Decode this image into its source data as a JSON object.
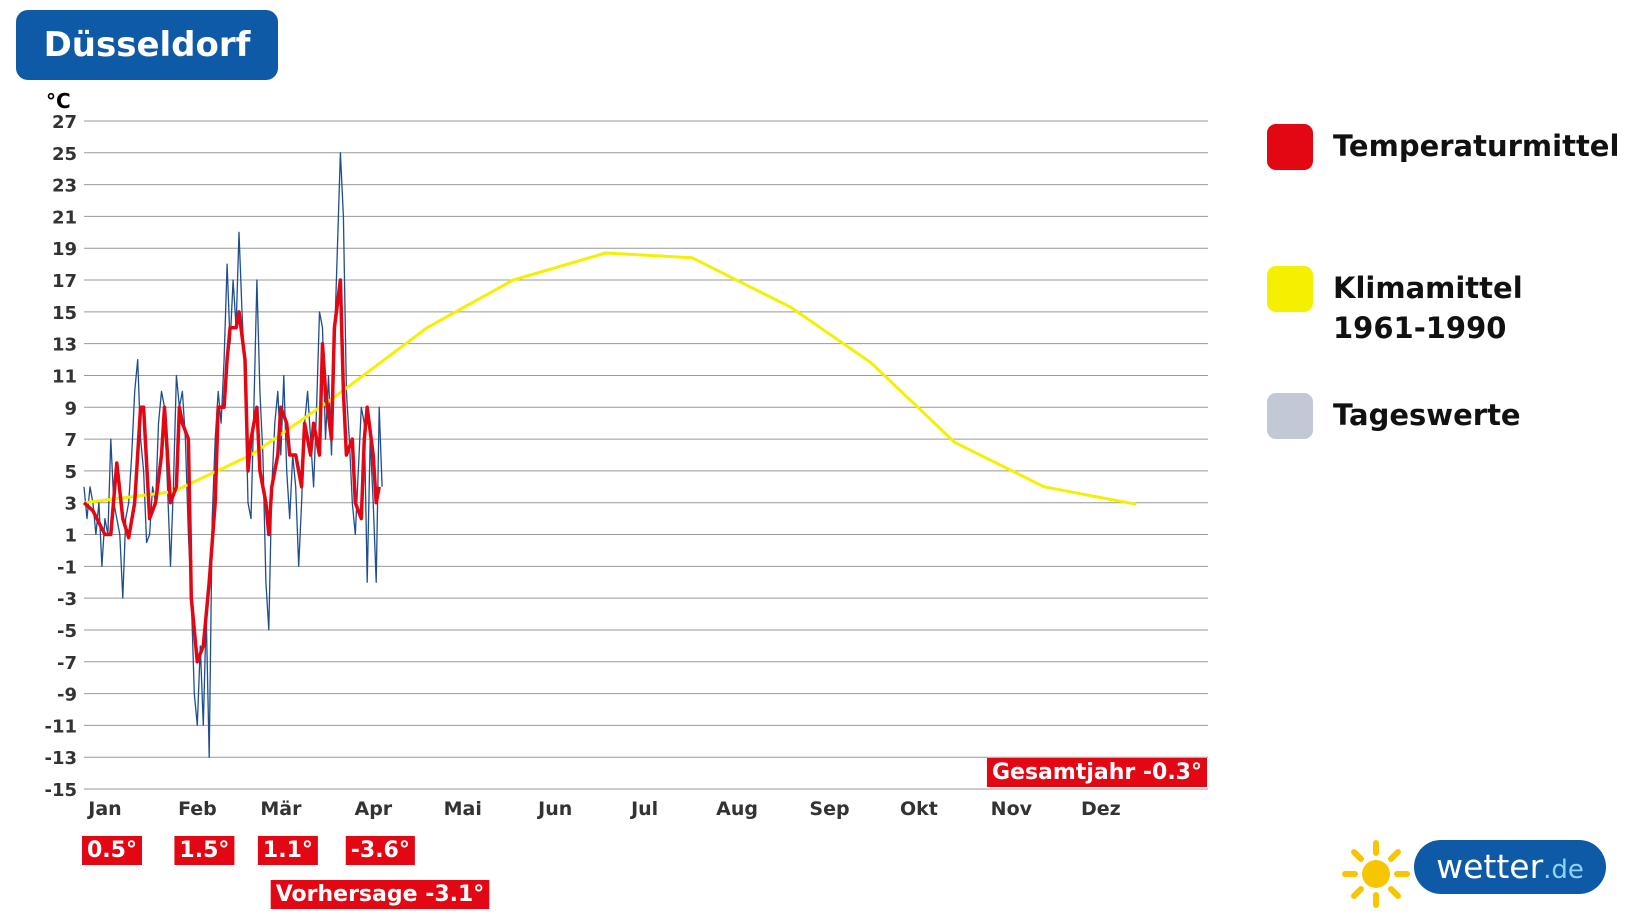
{
  "title": "Düsseldorf",
  "logo": {
    "name": "wetter",
    "suffix": ".de"
  },
  "chart_data": {
    "type": "line",
    "y_unit": "°C",
    "xlim": [
      0,
      377
    ],
    "ylim": [
      -15,
      27
    ],
    "yticks": [
      -15,
      -13,
      -11,
      -9,
      -7,
      -5,
      -3,
      -1,
      1,
      3,
      5,
      7,
      9,
      11,
      13,
      15,
      17,
      19,
      21,
      23,
      25,
      27
    ],
    "xticks": [
      {
        "value": 0,
        "label": "Jan"
      },
      {
        "value": 31,
        "label": "Feb"
      },
      {
        "value": 59,
        "label": "Mär"
      },
      {
        "value": 90,
        "label": "Apr"
      },
      {
        "value": 120,
        "label": "Mai"
      },
      {
        "value": 151,
        "label": "Jun"
      },
      {
        "value": 181,
        "label": "Jul"
      },
      {
        "value": 212,
        "label": "Aug"
      },
      {
        "value": 243,
        "label": "Sep"
      },
      {
        "value": 273,
        "label": "Okt"
      },
      {
        "value": 304,
        "label": "Nov"
      },
      {
        "value": 334,
        "label": "Dez"
      }
    ],
    "grid": true,
    "series": [
      {
        "name": "Temperaturmittel",
        "color": "#e30613",
        "legend_color": "#e30613",
        "x": [
          0,
          3,
          7,
          9,
          11,
          13,
          15,
          17,
          19,
          20,
          22,
          24,
          26,
          27,
          29,
          31,
          32,
          33,
          35,
          36,
          38,
          39,
          40,
          42,
          44,
          45,
          47,
          48,
          49,
          51,
          52,
          54,
          55,
          56,
          58,
          59,
          61,
          62,
          63,
          65,
          66,
          68,
          69,
          71,
          73,
          74,
          76,
          77,
          79,
          80,
          81,
          83,
          84,
          86,
          87,
          88,
          90,
          91,
          93,
          94,
          95,
          97,
          98,
          99
        ],
        "values": [
          3,
          2.5,
          1,
          1,
          5.5,
          2,
          0.8,
          3,
          9,
          9,
          2,
          3,
          6,
          9,
          3,
          4,
          9,
          8,
          7,
          -3,
          -7,
          -6.5,
          -6,
          -2,
          3,
          9,
          9,
          12,
          14,
          14,
          15,
          12,
          5,
          7,
          9,
          5,
          3,
          1,
          4,
          6,
          9,
          8,
          6,
          6,
          4,
          8,
          6,
          8,
          6,
          13,
          10,
          7,
          14,
          17,
          10,
          6,
          7,
          3,
          2,
          7,
          9,
          6,
          3,
          4
        ]
      },
      {
        "name": "Klimamittel 1961-1990",
        "color": "#f5f000",
        "legend_color": "#f5f000",
        "x": [
          0,
          30,
          56,
          83,
          115,
          144,
          175,
          204,
          237,
          264,
          292,
          322,
          353
        ],
        "values": [
          3,
          3.7,
          6,
          9.5,
          14,
          17,
          18.7,
          18.4,
          15.3,
          11.8,
          6.8,
          4,
          2.9
        ]
      },
      {
        "name": "Tageswerte",
        "color": "#1f4e8c",
        "legend_color": "#c3c8d6",
        "x": [
          0,
          1,
          2,
          3,
          4,
          5,
          6,
          7,
          8,
          9,
          10,
          11,
          12,
          13,
          14,
          15,
          16,
          17,
          18,
          19,
          20,
          21,
          22,
          23,
          24,
          25,
          26,
          27,
          28,
          29,
          30,
          31,
          32,
          33,
          34,
          35,
          36,
          37,
          38,
          39,
          40,
          41,
          42,
          43,
          44,
          45,
          46,
          47,
          48,
          49,
          50,
          51,
          52,
          53,
          54,
          55,
          56,
          57,
          58,
          59,
          60,
          61,
          62,
          63,
          64,
          65,
          66,
          67,
          68,
          69,
          70,
          71,
          72,
          73,
          74,
          75,
          76,
          77,
          78,
          79,
          80,
          81,
          82,
          83,
          84,
          85,
          86,
          87,
          88,
          89,
          90,
          91,
          92,
          93,
          94,
          95,
          96,
          97,
          98,
          99,
          100
        ],
        "values": [
          4,
          2,
          4,
          3,
          1,
          3,
          -1,
          2,
          1,
          7,
          3,
          2,
          1,
          -3,
          2,
          3,
          6,
          10,
          12,
          7,
          5,
          0.5,
          1,
          4,
          3,
          8,
          10,
          9,
          4,
          -1,
          4,
          11,
          9,
          10,
          7,
          1,
          -3,
          -9,
          -11,
          -6,
          -11,
          -4,
          -13,
          2,
          7,
          10,
          8,
          12,
          18,
          13,
          17,
          14,
          20,
          15,
          11,
          3,
          2,
          9,
          17,
          10,
          6,
          -2,
          -5,
          4,
          8,
          10,
          6,
          11,
          5,
          2,
          6,
          4,
          -1,
          3,
          8,
          10,
          7,
          4,
          9,
          15,
          14,
          7,
          11,
          6,
          13,
          19,
          25,
          21,
          10,
          7,
          3,
          1,
          5,
          9,
          8,
          -2,
          7,
          3,
          -2,
          9,
          4
        ]
      }
    ],
    "month_labels": [
      "0.5°",
      "1.5°",
      "1.1°",
      "-3.6°"
    ],
    "forecast_label": "Vorhersage -3.1°",
    "year_label": "Gesamtjahr -0.3°"
  }
}
